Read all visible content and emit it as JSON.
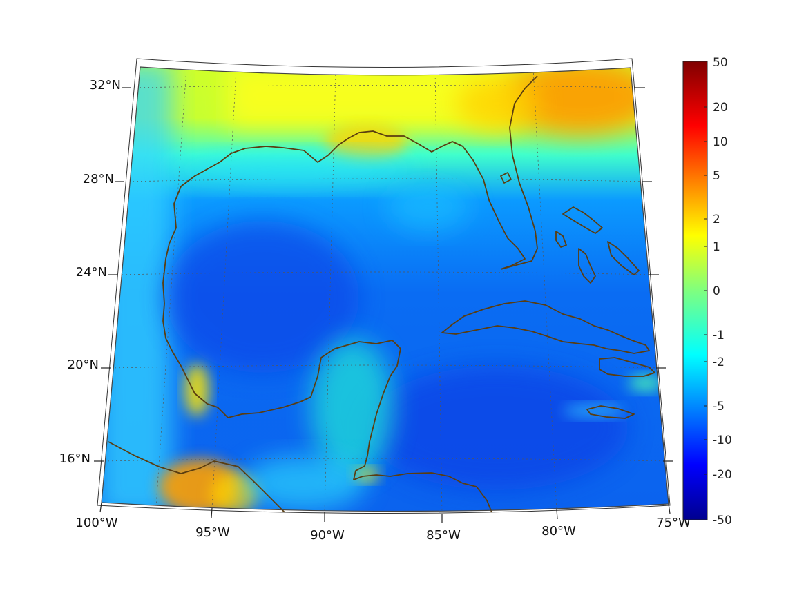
{
  "map": {
    "lat_labels": [
      "32°N",
      "28°N",
      "24°N",
      "20°N",
      "16°N"
    ],
    "lon_labels": [
      "100°W",
      "95°W",
      "90°W",
      "85°W",
      "80°W",
      "75°W"
    ],
    "coastline_color": "#5a3d10"
  },
  "colorbar": {
    "ticks": [
      "50",
      "20",
      "10",
      "5",
      "2",
      "1",
      "0",
      "-1",
      "-2",
      "-5",
      "-10",
      "-20",
      "-50"
    ],
    "colormap": "jet"
  }
}
